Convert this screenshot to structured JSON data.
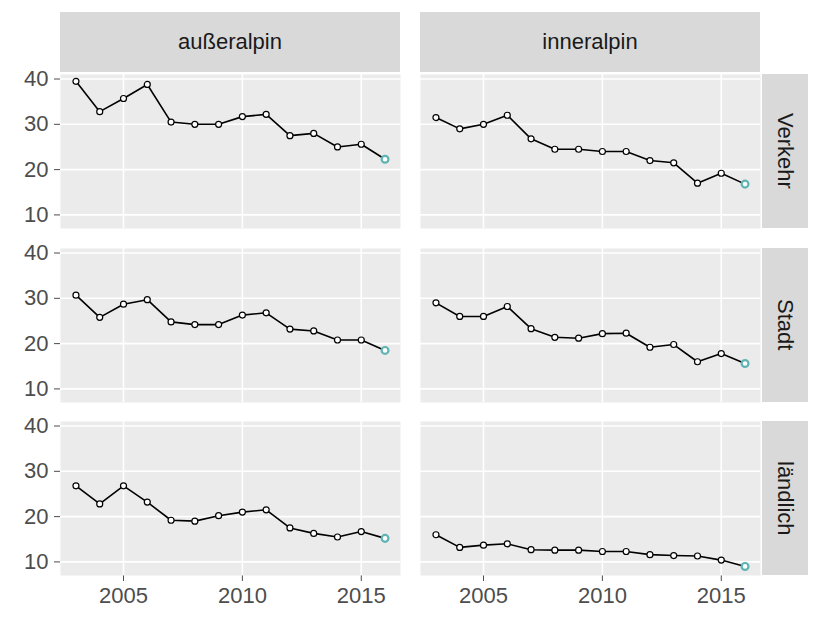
{
  "chart_data": {
    "type": "line",
    "x": [
      2003,
      2004,
      2005,
      2006,
      2007,
      2008,
      2009,
      2010,
      2011,
      2012,
      2013,
      2014,
      2015,
      2016
    ],
    "xlim": [
      2002.35,
      2016.65
    ],
    "xticks": [
      2005,
      2010,
      2015
    ],
    "ylim": [
      7,
      41
    ],
    "yticks": [
      10,
      20,
      30,
      40
    ],
    "grid": true,
    "columns": [
      "außeralpin",
      "inneralpin"
    ],
    "rows": [
      "Verkehr",
      "Stadt",
      "ländlich"
    ],
    "series": [
      {
        "column": "außeralpin",
        "row": "Verkehr",
        "color": "#000000",
        "marker": "circle",
        "values": [
          39.5,
          32.8,
          35.7,
          38.8,
          30.5,
          30.0,
          30.0,
          31.7,
          32.2,
          27.5,
          28.0,
          25.0,
          25.6,
          22.3
        ],
        "colors": [
          "#000000",
          "#000000",
          "#000000",
          "#000000",
          "#000000",
          "#000000",
          "#000000",
          "#000000",
          "#000000",
          "#000000",
          "#000000",
          "#000000",
          "#000000",
          "#5fb3b3"
        ]
      },
      {
        "column": "inneralpin",
        "row": "Verkehr",
        "color": "#000000",
        "marker": "circle",
        "values": [
          31.5,
          29.0,
          30.0,
          32.0,
          26.8,
          24.5,
          24.5,
          24.0,
          24.0,
          22.0,
          21.5,
          17.0,
          19.2,
          16.8
        ],
        "colors": [
          "#000000",
          "#000000",
          "#000000",
          "#000000",
          "#000000",
          "#000000",
          "#000000",
          "#000000",
          "#000000",
          "#000000",
          "#000000",
          "#000000",
          "#000000",
          "#5fb3b3"
        ]
      },
      {
        "column": "außeralpin",
        "row": "Stadt",
        "color": "#000000",
        "marker": "circle",
        "values": [
          30.7,
          25.8,
          28.7,
          29.7,
          24.8,
          24.2,
          24.2,
          26.3,
          26.8,
          23.2,
          22.8,
          20.8,
          20.8,
          18.5
        ],
        "colors": [
          "#000000",
          "#000000",
          "#000000",
          "#000000",
          "#000000",
          "#000000",
          "#000000",
          "#000000",
          "#000000",
          "#000000",
          "#000000",
          "#000000",
          "#000000",
          "#5fb3b3"
        ]
      },
      {
        "column": "inneralpin",
        "row": "Stadt",
        "color": "#000000",
        "marker": "circle",
        "values": [
          29.0,
          26.0,
          26.0,
          28.2,
          23.3,
          21.4,
          21.2,
          22.2,
          22.3,
          19.2,
          19.8,
          16.0,
          17.8,
          15.6
        ],
        "colors": [
          "#000000",
          "#000000",
          "#000000",
          "#000000",
          "#000000",
          "#000000",
          "#000000",
          "#000000",
          "#000000",
          "#000000",
          "#000000",
          "#000000",
          "#000000",
          "#5fb3b3"
        ]
      },
      {
        "column": "außeralpin",
        "row": "ländlich",
        "color": "#000000",
        "marker": "circle",
        "values": [
          26.8,
          22.8,
          26.8,
          23.2,
          19.2,
          19.0,
          20.2,
          21.0,
          21.5,
          17.5,
          16.3,
          15.5,
          16.7,
          15.2
        ],
        "colors": [
          "#000000",
          "#000000",
          "#000000",
          "#000000",
          "#000000",
          "#000000",
          "#000000",
          "#000000",
          "#000000",
          "#000000",
          "#000000",
          "#000000",
          "#000000",
          "#5fb3b3"
        ]
      },
      {
        "column": "inneralpin",
        "row": "ländlich",
        "color": "#000000",
        "marker": "circle",
        "values": [
          16.0,
          13.2,
          13.7,
          14.0,
          12.7,
          12.6,
          12.6,
          12.3,
          12.3,
          11.6,
          11.4,
          11.3,
          10.4,
          9.0
        ],
        "colors": [
          "#000000",
          "#000000",
          "#000000",
          "#000000",
          "#000000",
          "#000000",
          "#000000",
          "#000000",
          "#000000",
          "#000000",
          "#000000",
          "#000000",
          "#000000",
          "#5fb3b3"
        ]
      }
    ]
  }
}
